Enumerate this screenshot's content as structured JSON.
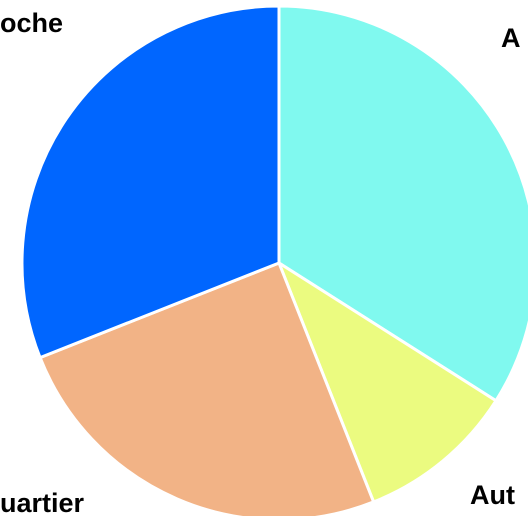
{
  "chart_data": {
    "type": "pie",
    "categories": [
      "A",
      "Aut",
      "uartier",
      "oche"
    ],
    "values": [
      34,
      10,
      25,
      31
    ],
    "colors": [
      "#80f9ef",
      "#ebfb80",
      "#f2b386",
      "#0066ff"
    ]
  }
}
